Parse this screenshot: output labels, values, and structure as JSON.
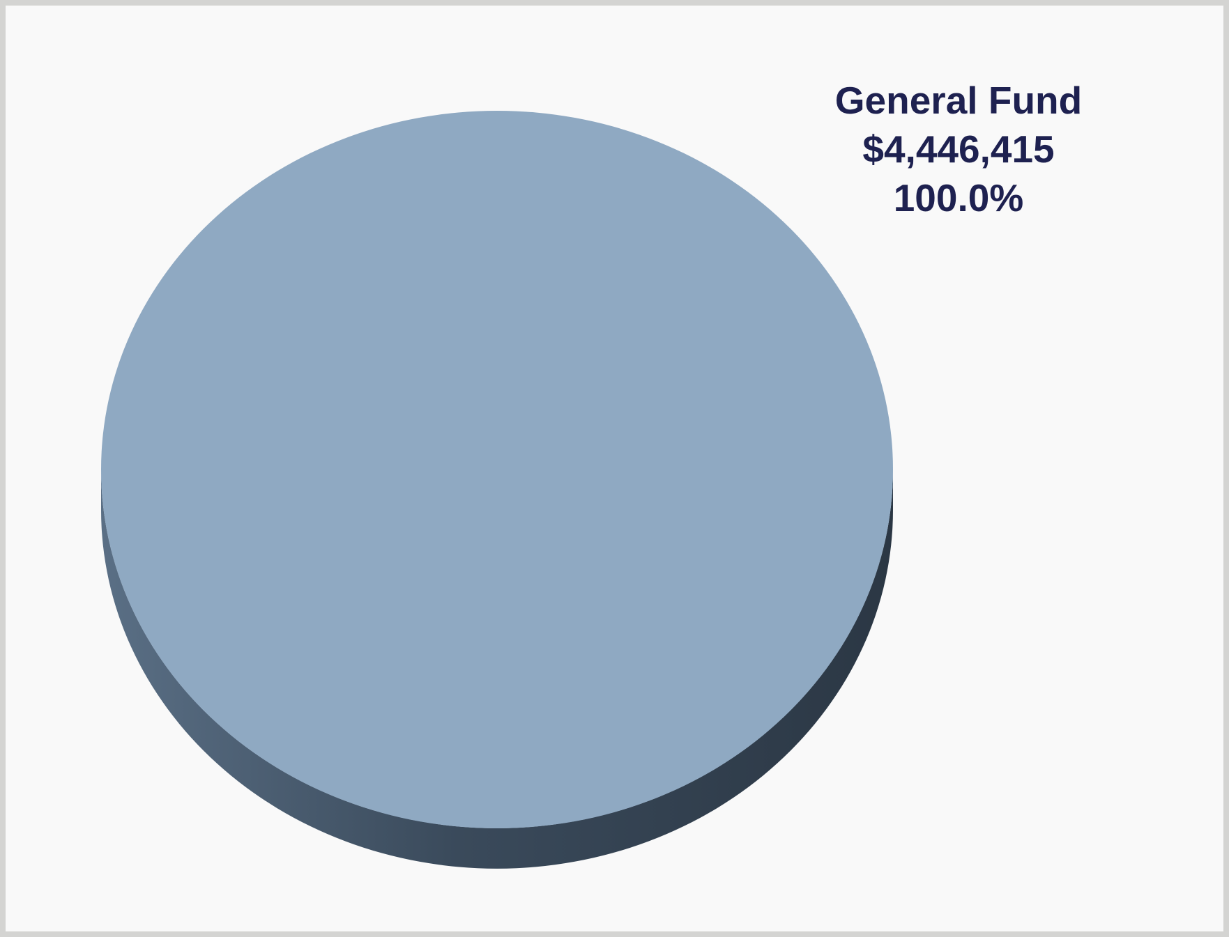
{
  "chart_data": {
    "type": "pie",
    "style": "3d",
    "slices": [
      {
        "name": "General Fund",
        "value": 4446415,
        "value_label": "$4,446,415",
        "percent": 100.0,
        "percent_label": "100.0%",
        "color": "#8fa9c2"
      }
    ],
    "colors": {
      "label_text": "#1e2150",
      "side_dark": "#2f3d4c",
      "side_light": "#4f647a"
    }
  }
}
